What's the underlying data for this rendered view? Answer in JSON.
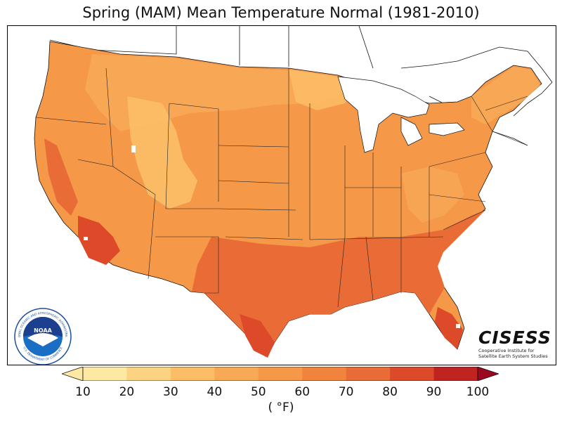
{
  "title": "Spring (MAM) Mean Temperature Normal (1981-2010)",
  "colorbar": {
    "unit": "( °F)",
    "ticks": [
      "10",
      "20",
      "30",
      "40",
      "50",
      "60",
      "70",
      "80",
      "90",
      "100"
    ],
    "colors": [
      "#fde9a3",
      "#fcd380",
      "#fbbd66",
      "#f8a955",
      "#f59848",
      "#f0843c",
      "#e96c36",
      "#dd4a2a",
      "#c02420",
      "#9c0820"
    ],
    "extend": "both"
  },
  "logos": {
    "noaa": {
      "center_text": "NOAA",
      "ring_top": "NATIONAL OCEANIC AND ATMOSPHERIC ADMINISTRATION",
      "ring_bottom": "U.S. DEPARTMENT OF COMMERCE"
    },
    "cisess": {
      "name": "CISESS",
      "subtitle_line1": "Cooperative Institute for",
      "subtitle_line2": "Satellite Earth System Studies"
    }
  }
}
